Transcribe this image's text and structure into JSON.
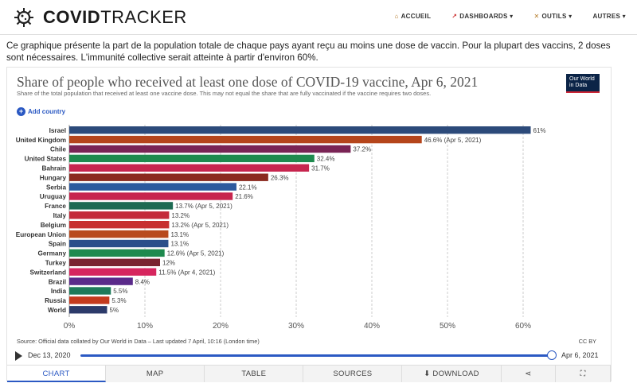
{
  "header": {
    "logo_text_bold": "COVID",
    "logo_text_light": "TRACKER",
    "nav": [
      {
        "label": "ACCUEIL",
        "icon": "home-icon"
      },
      {
        "label": "DASHBOARDS ▾",
        "icon": "chart-icon"
      },
      {
        "label": "OUTILS ▾",
        "icon": "tools-icon"
      },
      {
        "label": "AUTRES ▾",
        "icon": ""
      }
    ]
  },
  "intro": "Ce graphique présente la part de la population totale de chaque pays ayant reçu au moins une dose de vaccin. Pour la plupart des vaccins, 2 doses sont nécessaires. L'immunité collective serait atteinte à partir d'environ 60%.",
  "card": {
    "owid_logo": "Our World in Data",
    "add_country": "Add country",
    "source": "Source: Official data collated by Our World in Data – Last updated 7 April, 10:16 (London time)",
    "license": "CC BY",
    "timeline": {
      "start": "Dec 13, 2020",
      "end": "Apr 6, 2021",
      "position": 1.0
    },
    "tabs": [
      "CHART",
      "MAP",
      "TABLE",
      "SOURCES",
      "DOWNLOAD",
      "share",
      "fullscreen"
    ]
  },
  "chart_data": {
    "type": "bar",
    "orientation": "horizontal",
    "title": "Share of people who received at least one dose of COVID-19 vaccine, Apr 6, 2021",
    "subtitle": "Share of the total population that received at least one vaccine dose. This may not equal the share that are fully vaccinated if the vaccine requires two doses.",
    "xlim": [
      0,
      60
    ],
    "x_ticks": [
      "0%",
      "10%",
      "20%",
      "30%",
      "40%",
      "50%",
      "60%"
    ],
    "grid": true,
    "bars": [
      {
        "country": "Israel",
        "value": 61,
        "label": "61%",
        "color": "#2c4a7a"
      },
      {
        "country": "United Kingdom",
        "value": 46.6,
        "label": "46.6% (Apr 5, 2021)",
        "color": "#b5451b"
      },
      {
        "country": "Chile",
        "value": 37.2,
        "label": "37.2%",
        "color": "#7a2455"
      },
      {
        "country": "United States",
        "value": 32.4,
        "label": "32.4%",
        "color": "#1e8a4e"
      },
      {
        "country": "Bahrain",
        "value": 31.7,
        "label": "31.7%",
        "color": "#c7254e"
      },
      {
        "country": "Hungary",
        "value": 26.3,
        "label": "26.3%",
        "color": "#8b2a1f"
      },
      {
        "country": "Serbia",
        "value": 22.1,
        "label": "22.1%",
        "color": "#2c5a9e"
      },
      {
        "country": "Uruguay",
        "value": 21.6,
        "label": "21.6%",
        "color": "#c7254e"
      },
      {
        "country": "France",
        "value": 13.7,
        "label": "13.7% (Apr 5, 2021)",
        "color": "#1e6a52"
      },
      {
        "country": "Italy",
        "value": 13.2,
        "label": "13.2%",
        "color": "#c42a3a"
      },
      {
        "country": "Belgium",
        "value": 13.2,
        "label": "13.2% (Apr 5, 2021)",
        "color": "#c73030"
      },
      {
        "country": "European Union",
        "value": 13.1,
        "label": "13.1%",
        "color": "#b84a1e"
      },
      {
        "country": "Spain",
        "value": 13.1,
        "label": "13.1%",
        "color": "#2a4f8a"
      },
      {
        "country": "Germany",
        "value": 12.6,
        "label": "12.6% (Apr 5, 2021)",
        "color": "#1e8a4e"
      },
      {
        "country": "Turkey",
        "value": 12,
        "label": "12%",
        "color": "#7a2430"
      },
      {
        "country": "Switzerland",
        "value": 11.5,
        "label": "11.5% (Apr 4, 2021)",
        "color": "#d6265e"
      },
      {
        "country": "Brazil",
        "value": 8.4,
        "label": "8.4%",
        "color": "#5a2a8a"
      },
      {
        "country": "India",
        "value": 5.5,
        "label": "5.5%",
        "color": "#1e7a5a"
      },
      {
        "country": "Russia",
        "value": 5.3,
        "label": "5.3%",
        "color": "#c43a1e"
      },
      {
        "country": "World",
        "value": 5,
        "label": "5%",
        "color": "#2c3a6a"
      }
    ]
  }
}
